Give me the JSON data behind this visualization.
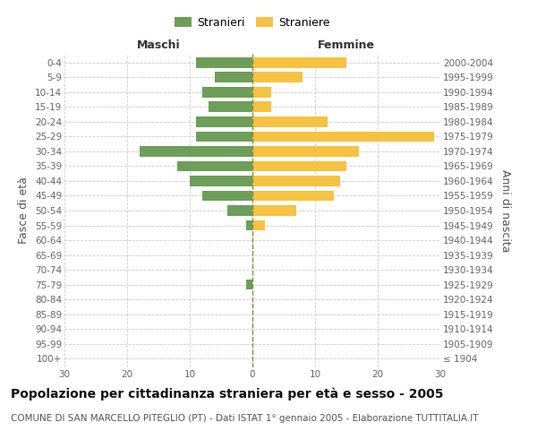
{
  "age_groups": [
    "100+",
    "95-99",
    "90-94",
    "85-89",
    "80-84",
    "75-79",
    "70-74",
    "65-69",
    "60-64",
    "55-59",
    "50-54",
    "45-49",
    "40-44",
    "35-39",
    "30-34",
    "25-29",
    "20-24",
    "15-19",
    "10-14",
    "5-9",
    "0-4"
  ],
  "birth_years": [
    "≤ 1904",
    "1905-1909",
    "1910-1914",
    "1915-1919",
    "1920-1924",
    "1925-1929",
    "1930-1934",
    "1935-1939",
    "1940-1944",
    "1945-1949",
    "1950-1954",
    "1955-1959",
    "1960-1964",
    "1965-1969",
    "1970-1974",
    "1975-1979",
    "1980-1984",
    "1985-1989",
    "1990-1994",
    "1995-1999",
    "2000-2004"
  ],
  "males": [
    0,
    0,
    0,
    0,
    0,
    1,
    0,
    0,
    0,
    1,
    4,
    8,
    10,
    12,
    18,
    9,
    9,
    7,
    8,
    6,
    9
  ],
  "females": [
    0,
    0,
    0,
    0,
    0,
    0,
    0,
    0,
    0,
    2,
    7,
    13,
    14,
    15,
    17,
    29,
    12,
    3,
    3,
    8,
    15
  ],
  "male_color": "#6d9e5a",
  "female_color": "#f5c242",
  "title": "Popolazione per cittadinanza straniera per età e sesso - 2005",
  "subtitle": "COMUNE DI SAN MARCELLO PITEGLIO (PT) - Dati ISTAT 1° gennaio 2005 - Elaborazione TUTTITALIA.IT",
  "ylabel_left": "Fasce di età",
  "ylabel_right": "Anni di nascita",
  "xlabel_left": "Maschi",
  "xlabel_right": "Femmine",
  "legend_male": "Stranieri",
  "legend_female": "Straniere",
  "xlim": 30,
  "background_color": "#ffffff",
  "grid_color": "#cccccc",
  "title_fontsize": 10,
  "subtitle_fontsize": 7.5,
  "tick_fontsize": 7.5,
  "label_fontsize": 9,
  "xticks": [
    -30,
    -20,
    -10,
    0,
    10,
    20,
    30
  ]
}
